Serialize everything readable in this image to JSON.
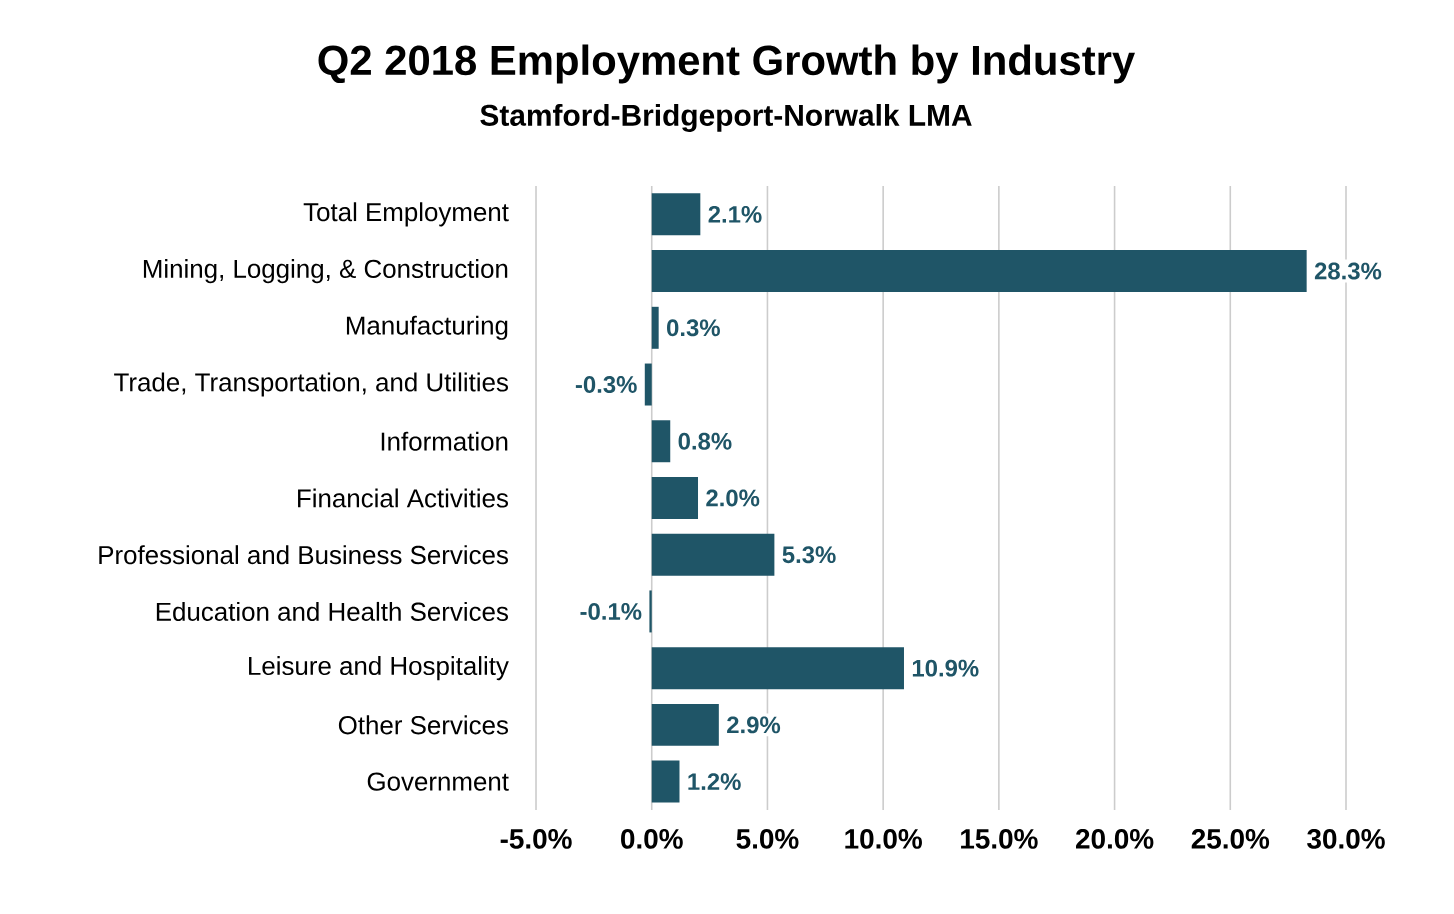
{
  "chart_data": {
    "type": "bar",
    "orientation": "horizontal",
    "title": "Q2 2018 Employment Growth by Industry",
    "subtitle": "Stamford-Bridgeport-Norwalk LMA",
    "categories": [
      "Total Employment",
      "Mining, Logging, & Construction",
      "Manufacturing",
      "Trade, Transportation, and Utilities",
      "Information",
      "Financial Activities",
      "Professional and Business Services",
      "Education and Health Services",
      "Leisure and Hospitality",
      "Other Services",
      "Government"
    ],
    "values": [
      2.1,
      28.3,
      0.3,
      -0.3,
      0.8,
      2.0,
      5.3,
      -0.1,
      10.9,
      2.9,
      1.2
    ],
    "value_labels": [
      "2.1%",
      "28.3%",
      "0.3%",
      "-0.3%",
      "0.8%",
      "2.0%",
      "5.3%",
      "-0.1%",
      "10.9%",
      "2.9%",
      "1.2%"
    ],
    "color": "#1f5567",
    "xlim": [
      -5,
      30
    ],
    "xticks": [
      {
        "value": -5,
        "label": "-5.0%"
      },
      {
        "value": 0,
        "label": "0.0%"
      },
      {
        "value": 5,
        "label": "5.0%"
      },
      {
        "value": 10,
        "label": "10.0%"
      },
      {
        "value": 15,
        "label": "15.0%"
      },
      {
        "value": 20,
        "label": "20.0%"
      },
      {
        "value": 25,
        "label": "25.0%"
      },
      {
        "value": 30,
        "label": "30.0%"
      }
    ],
    "grid": "x"
  }
}
